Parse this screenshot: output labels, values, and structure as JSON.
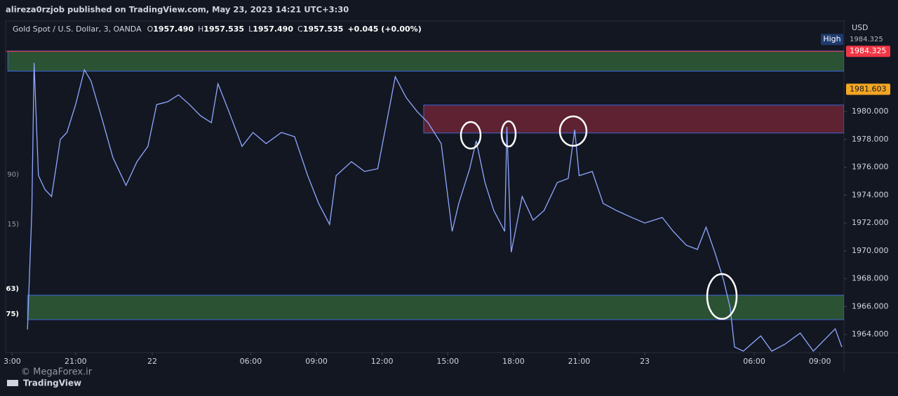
{
  "header": {
    "publisher": "alireza0rzjob published on TradingView.com, May 23, 2023 14:21 UTC+3:30"
  },
  "legend_line": {
    "symbol": "Gold Spot / U.S. Dollar, 3, OANDA",
    "ohlc": [
      {
        "key": "O",
        "value": "1957.490"
      },
      {
        "key": "H",
        "value": "1957.535"
      },
      {
        "key": "L",
        "value": "1957.490"
      },
      {
        "key": "C",
        "value": "1957.535"
      }
    ],
    "change": "+0.045 (+0.00%)"
  },
  "chart_data": {
    "type": "line",
    "color": "#8fa8ff",
    "x": [
      -2.2,
      -2.0,
      -1.9,
      -1.7,
      -1.4,
      -1.1,
      -0.7,
      -0.4,
      0,
      0.4,
      0.7,
      1.2,
      1.7,
      2.3,
      2.8,
      3.3,
      3.7,
      4.2,
      4.7,
      5.2,
      5.7,
      6.2,
      6.5,
      7.0,
      7.6,
      8.1,
      8.7,
      9.4,
      10.0,
      10.6,
      11.1,
      11.6,
      11.9,
      12.6,
      13.2,
      13.8,
      14.3,
      14.6,
      15.1,
      15.6,
      16.1,
      16.7,
      17.2,
      17.5,
      18.0,
      18.3,
      18.7,
      19.1,
      19.6,
      19.7,
      19.9,
      20.4,
      20.9,
      21.4,
      22.0,
      22.5,
      22.8,
      23.0,
      23.6,
      24.1,
      24.7,
      25.4,
      26.0,
      26.8,
      27.3,
      27.9,
      28.4,
      28.8,
      29.2,
      29.6,
      29.9,
      30.1,
      30.5,
      31.3,
      31.8,
      32.4,
      33.1,
      33.7,
      34.7,
      35.0
    ],
    "values": [
      1964.35,
      1972.9,
      1983.5,
      1975.4,
      1974.4,
      1973.9,
      1978.0,
      1978.5,
      1980.5,
      1983.0,
      1982.2,
      1979.5,
      1976.7,
      1974.7,
      1976.4,
      1977.5,
      1980.5,
      1980.7,
      1981.2,
      1980.5,
      1979.7,
      1979.2,
      1982.0,
      1980.0,
      1977.5,
      1978.5,
      1977.7,
      1978.5,
      1978.2,
      1975.4,
      1973.4,
      1971.9,
      1975.4,
      1976.4,
      1975.7,
      1975.9,
      1980.0,
      1982.5,
      1981.0,
      1980.0,
      1979.2,
      1977.7,
      1971.4,
      1973.4,
      1975.9,
      1977.9,
      1974.9,
      1972.9,
      1971.4,
      1978.9,
      1969.9,
      1973.9,
      1972.2,
      1972.9,
      1974.9,
      1975.2,
      1978.7,
      1975.4,
      1975.7,
      1973.4,
      1972.9,
      1972.4,
      1972.0,
      1972.4,
      1971.4,
      1970.4,
      1970.1,
      1971.7,
      1969.9,
      1967.9,
      1965.9,
      1963.1,
      1962.8,
      1963.9,
      1962.8,
      1963.3,
      1964.1,
      1962.8,
      1964.4,
      1963.1
    ],
    "xlim": [
      -3.2,
      35.1
    ],
    "ylim": [
      1962.7,
      1986.5
    ],
    "xticks": [
      {
        "value": -2.9,
        "label": "3:00"
      },
      {
        "value": 0,
        "label": "21:00"
      },
      {
        "value": 3.5,
        "label": "22"
      },
      {
        "value": 8.0,
        "label": "06:00"
      },
      {
        "value": 11.0,
        "label": "09:00"
      },
      {
        "value": 14.0,
        "label": "12:00"
      },
      {
        "value": 17.0,
        "label": "15:00"
      },
      {
        "value": 20.0,
        "label": "18:00"
      },
      {
        "value": 23.0,
        "label": "21:00"
      },
      {
        "value": 26.0,
        "label": "23"
      },
      {
        "value": 31.0,
        "label": "06:00"
      },
      {
        "value": 34.0,
        "label": "09:00"
      }
    ],
    "yticks": [
      {
        "value": 1964,
        "label": "1964.000"
      },
      {
        "value": 1966,
        "label": "1966.000"
      },
      {
        "value": 1968,
        "label": "1968.000"
      },
      {
        "value": 1970,
        "label": "1970.000"
      },
      {
        "value": 1972,
        "label": "1972.000"
      },
      {
        "value": 1974,
        "label": "1974.000"
      },
      {
        "value": 1976,
        "label": "1976.000"
      },
      {
        "value": 1978,
        "label": "1978.000"
      },
      {
        "value": 1980,
        "label": "1980.000"
      }
    ],
    "zones": [
      {
        "x0": -3.1,
        "y0": 1982.9,
        "y1": 1984.35,
        "color": "#2a5233"
      },
      {
        "x0": 15.9,
        "y0": 1978.46,
        "y1": 1980.47,
        "color": "#5e2232"
      },
      {
        "x0": -2.2,
        "y0": 1965.06,
        "y1": 1966.82,
        "color": "#2a5233"
      }
    ],
    "currency": "USD",
    "high_marker": {
      "label": "High",
      "value": 1984.325
    },
    "price_tags": [
      {
        "value": 1984.325,
        "color": "#f23645"
      },
      {
        "value": 1981.603,
        "color": "#f5a623"
      }
    ]
  },
  "left_labels": [
    "90)",
    "15)",
    "63)",
    "75)"
  ],
  "footer": {
    "watermark": "© MegaForex.ir",
    "brand": "TradingView"
  }
}
